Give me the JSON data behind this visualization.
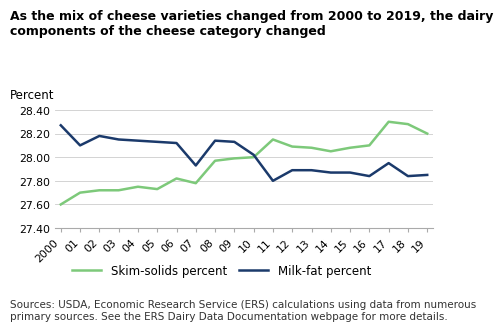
{
  "years": [
    "2000",
    "01",
    "02",
    "03",
    "04",
    "05",
    "06",
    "07",
    "08",
    "09",
    "10",
    "11",
    "12",
    "13",
    "14",
    "15",
    "16",
    "17",
    "18",
    "19"
  ],
  "skim_solids": [
    27.6,
    27.7,
    27.72,
    27.72,
    27.75,
    27.73,
    27.82,
    27.78,
    27.97,
    27.99,
    28.0,
    28.15,
    28.09,
    28.08,
    28.05,
    28.08,
    28.1,
    28.3,
    28.28,
    28.2
  ],
  "milk_fat": [
    28.27,
    28.1,
    28.18,
    28.15,
    28.14,
    28.13,
    28.12,
    27.93,
    28.14,
    28.13,
    28.02,
    27.8,
    27.89,
    27.89,
    27.87,
    27.87,
    27.84,
    27.95,
    27.84,
    27.85
  ],
  "skim_color": "#7dc97a",
  "fat_color": "#1b3a6b",
  "title": "As the mix of cheese varieties changed from 2000 to 2019, the dairy\ncomponents of the cheese category changed",
  "percent_label": "Percent",
  "ylim_min": 27.4,
  "ylim_max": 28.52,
  "yticks": [
    27.4,
    27.6,
    27.8,
    28.0,
    28.2,
    28.4
  ],
  "legend_skim": "Skim-solids percent",
  "legend_fat": "Milk-fat percent",
  "source_text": "Sources: USDA, Economic Research Service (ERS) calculations using data from numerous\nprimary sources. See the ERS Dairy Data Documentation webpage for more details.",
  "title_fontsize": 9.0,
  "tick_fontsize": 7.8,
  "legend_fontsize": 8.5,
  "source_fontsize": 7.5,
  "percent_fontsize": 8.5,
  "line_width": 1.8,
  "background_color": "#ffffff"
}
